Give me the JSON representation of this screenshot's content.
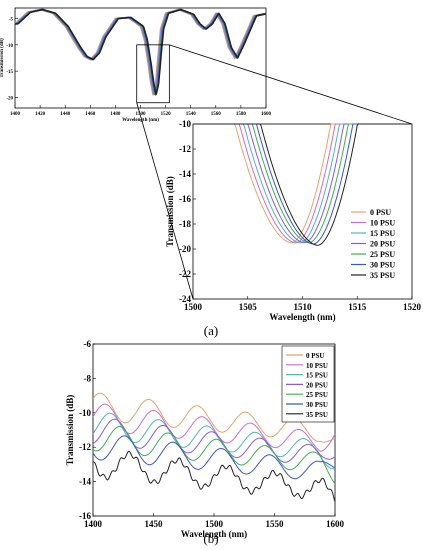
{
  "panels": {
    "a": {
      "label": "(a)"
    },
    "b": {
      "label": "(b)"
    }
  },
  "colors": {
    "0 PSU": "#e8a36a",
    "10 PSU": "#c86fd6",
    "15 PSU": "#52b2c8",
    "20 PSU": "#8a5cd0",
    "25 PSU": "#3fae52",
    "30 PSU": "#3a57c8",
    "35 PSU": "#222222"
  },
  "chart_data": [
    {
      "id": "overview",
      "type": "line",
      "xlabel": "Wavelength (nm)",
      "ylabel": "Transmission (dB)",
      "xlim": [
        1400,
        1600
      ],
      "ylim": [
        -22,
        -3
      ],
      "xticks": [
        1400,
        1420,
        1440,
        1460,
        1480,
        1500,
        1520,
        1540,
        1560,
        1580,
        1600
      ],
      "yticks": [
        -5,
        -10,
        -15,
        -20
      ],
      "series_names": [
        "0 PSU",
        "10 PSU",
        "15 PSU",
        "20 PSU",
        "25 PSU",
        "30 PSU",
        "35 PSU"
      ],
      "base_curve": {
        "x": [
          1400,
          1410,
          1420,
          1430,
          1440,
          1450,
          1455,
          1460,
          1465,
          1470,
          1480,
          1490,
          1500,
          1503,
          1506,
          1508,
          1510,
          1512,
          1514,
          1516,
          1520,
          1530,
          1540,
          1545,
          1550,
          1555,
          1560,
          1565,
          1570,
          1575,
          1580,
          1590,
          1600
        ],
        "y": [
          -6.0,
          -3.8,
          -3.3,
          -4.0,
          -6.5,
          -10.5,
          -12.2,
          -12.8,
          -11.5,
          -8.5,
          -5.0,
          -4.8,
          -6.5,
          -9.0,
          -13.5,
          -17.0,
          -19.5,
          -17.5,
          -12.0,
          -7.0,
          -4.0,
          -3.3,
          -4.2,
          -6.0,
          -7.0,
          -6.0,
          -4.0,
          -6.0,
          -10.5,
          -12.5,
          -10.0,
          -4.5,
          -4.0
        ]
      },
      "shift_per_series_nm": 0.4
    },
    {
      "id": "zoom",
      "type": "line",
      "xlabel": "Wavelength (nm)",
      "ylabel": "Transmission (dB)",
      "xlim": [
        1500,
        1520
      ],
      "ylim": [
        -24,
        -10
      ],
      "xticks": [
        1500,
        1505,
        1510,
        1515,
        1520
      ],
      "yticks": [
        -10,
        -12,
        -14,
        -16,
        -18,
        -20,
        -22,
        -24
      ],
      "legend": [
        "0 PSU",
        "10 PSU",
        "15 PSU",
        "20 PSU",
        "25 PSU",
        "30 PSU",
        "35 PSU"
      ],
      "legend_position": "right",
      "min_wavelengths_nm": [
        1509.0,
        1509.4,
        1509.8,
        1510.2,
        1510.6,
        1511.0,
        1511.4
      ],
      "min_values_db": [
        -19.5,
        -19.5,
        -19.5,
        -19.5,
        -19.5,
        -19.6,
        -19.7
      ]
    },
    {
      "id": "b",
      "type": "line",
      "xlabel": "Wavelength (nm)",
      "ylabel": "Transmission (dB)",
      "xlim": [
        1400,
        1600
      ],
      "ylim": [
        -16,
        -6
      ],
      "xticks": [
        1400,
        1450,
        1500,
        1550,
        1600
      ],
      "yticks": [
        -6,
        -8,
        -10,
        -12,
        -14,
        -16
      ],
      "legend": [
        "0 PSU",
        "10 PSU",
        "15 PSU",
        "20 PSU",
        "25 PSU",
        "30 PSU",
        "35 PSU"
      ],
      "legend_position": "top-right",
      "offsets_db": [
        -9.6,
        -10.2,
        -10.7,
        -11.0,
        -11.4,
        -11.9,
        -12.9
      ],
      "amplitude_db": 0.8,
      "period_nm": 40
    }
  ]
}
